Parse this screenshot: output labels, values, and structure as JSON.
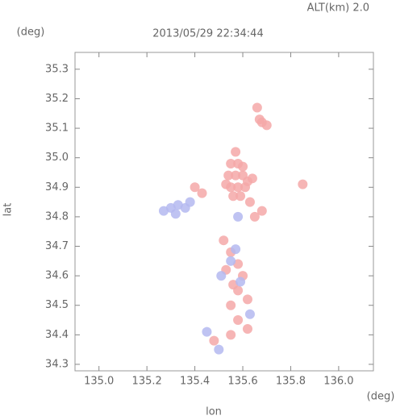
{
  "chart_data": {
    "type": "scatter",
    "title": "2013/05/29 22:34:44",
    "subtitle": "ALT(km) 2.0",
    "x_label": "lon",
    "y_label": "lat",
    "x_unit": "(deg)",
    "y_unit": "(deg)",
    "xlim": [
      134.9,
      136.145
    ],
    "ylim": [
      34.278,
      35.357
    ],
    "xticks": [
      {
        "value": 135,
        "label": "135.0"
      },
      135.2,
      135.4,
      135.6,
      135.8,
      {
        "value": 136,
        "label": "136.0"
      }
    ],
    "yticks": [
      34.3,
      34.4,
      34.5,
      34.6,
      34.7,
      34.8,
      34.9,
      {
        "value": 35,
        "label": "35.0"
      },
      35.1,
      35.2,
      35.3
    ],
    "series": [
      {
        "color": "#f5a8a8",
        "x": [
          135.55,
          135.57,
          135.58,
          135.54,
          135.57,
          135.6,
          135.62,
          135.55,
          135.58,
          135.61,
          135.56,
          135.59,
          135.53,
          135.6,
          135.64,
          135.66,
          135.68,
          135.7,
          135.67,
          135.4,
          135.43,
          135.52,
          135.55,
          135.58,
          135.53,
          135.6,
          135.56,
          135.58,
          135.62,
          135.55,
          135.58,
          135.62,
          135.55,
          135.48,
          135.65,
          135.68,
          135.63,
          135.85
        ],
        "values": [
          34.98,
          35.02,
          34.98,
          34.94,
          34.94,
          34.94,
          34.92,
          34.9,
          34.9,
          34.9,
          34.87,
          34.87,
          34.91,
          34.97,
          34.93,
          35.17,
          35.12,
          35.11,
          35.13,
          34.9,
          34.88,
          34.72,
          34.68,
          34.64,
          34.62,
          34.6,
          34.57,
          34.55,
          34.52,
          34.5,
          34.45,
          34.42,
          34.4,
          34.38,
          34.8,
          34.82,
          34.85,
          34.91
        ]
      },
      {
        "color": "#b4b8f0",
        "x": [
          135.3,
          135.33,
          135.36,
          135.32,
          135.38,
          135.27,
          135.55,
          135.51,
          135.59,
          135.63,
          135.45,
          135.58,
          135.5,
          135.57
        ],
        "values": [
          34.83,
          34.84,
          34.83,
          34.81,
          34.85,
          34.82,
          34.65,
          34.6,
          34.58,
          34.47,
          34.41,
          34.8,
          34.35,
          34.69
        ]
      }
    ]
  }
}
